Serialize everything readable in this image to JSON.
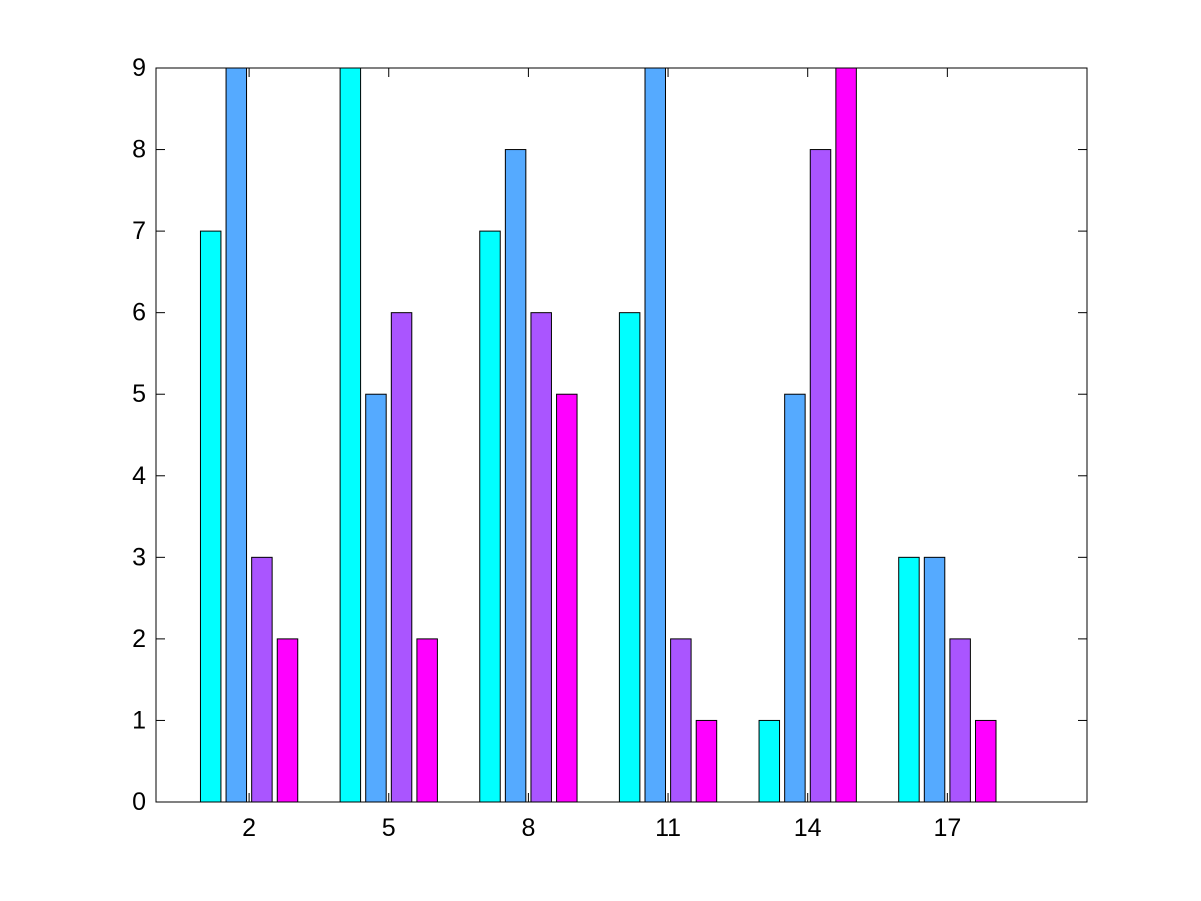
{
  "chart_data": {
    "type": "bar",
    "categories": [
      "2",
      "5",
      "8",
      "11",
      "14",
      "17"
    ],
    "x": [
      2,
      5,
      8,
      11,
      14,
      17
    ],
    "series": [
      {
        "values": [
          7,
          9,
          7,
          6,
          1,
          3
        ],
        "color": "#00FFFF"
      },
      {
        "values": [
          9,
          5,
          8,
          9,
          5,
          3
        ],
        "color": "#55AAFF"
      },
      {
        "values": [
          3,
          6,
          6,
          2,
          8,
          2
        ],
        "color": "#AA55FF"
      },
      {
        "values": [
          2,
          2,
          5,
          1,
          9,
          1
        ],
        "color": "#FF00FF"
      }
    ],
    "xlim": [
      0,
      20
    ],
    "ylim": [
      0,
      9
    ],
    "xticks": [
      "2",
      "5",
      "8",
      "11",
      "14",
      "17"
    ],
    "yticks": [
      "0",
      "1",
      "2",
      "3",
      "4",
      "5",
      "6",
      "7",
      "8",
      "9"
    ],
    "grid": false,
    "legend": "none"
  }
}
